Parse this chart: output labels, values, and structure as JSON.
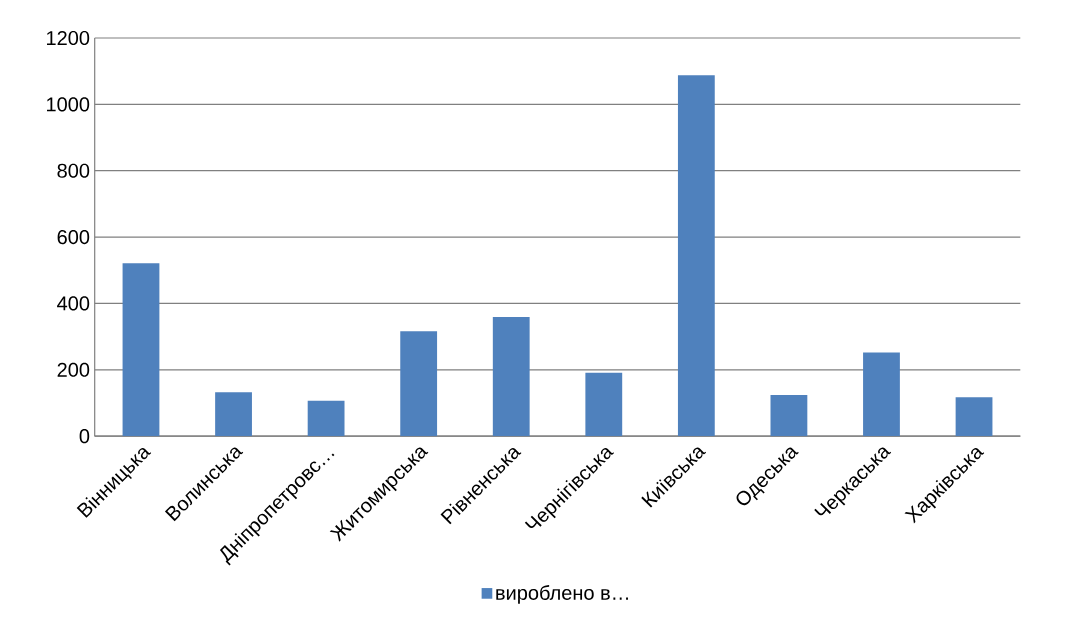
{
  "chart_data": {
    "type": "bar",
    "categories": [
      "Вінницька",
      "Волинська",
      "Дніпропетровс…",
      "Житомирська",
      "Рівненська",
      "Чернігівська",
      "Київська",
      "Одеська",
      "Черкаська",
      "Харківська"
    ],
    "series": [
      {
        "name": "вироблено в…",
        "color": "#4f81bd",
        "values": [
          521,
          132,
          107,
          316,
          359,
          191,
          1088,
          124,
          252,
          117
        ]
      }
    ],
    "ylim": [
      0,
      1200
    ],
    "yticks": [
      0,
      200,
      400,
      600,
      800,
      1000,
      1200
    ],
    "grid": "y",
    "legend": "bottom"
  }
}
